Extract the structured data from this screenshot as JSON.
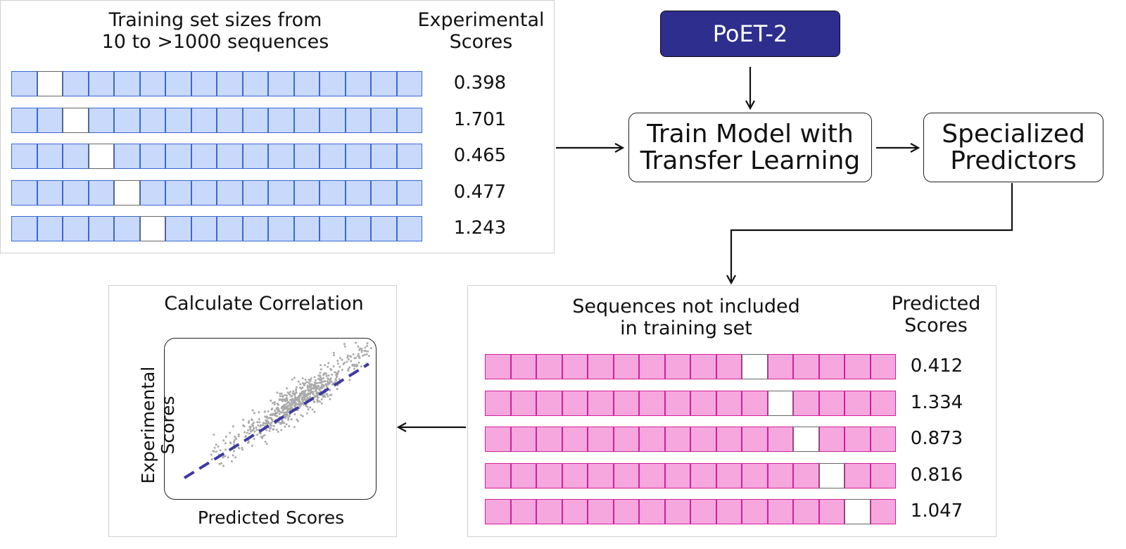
{
  "training_panel": {
    "title": "Training set sizes from\n10 to >1000 sequences",
    "scores_header": "Experimental\nScores",
    "rows": [
      {
        "blank_index": 1,
        "score": "0.398"
      },
      {
        "blank_index": 2,
        "score": "1.701"
      },
      {
        "blank_index": 3,
        "score": "0.465"
      },
      {
        "blank_index": 4,
        "score": "0.477"
      },
      {
        "blank_index": 5,
        "score": "1.243"
      }
    ],
    "cells_per_row": 16,
    "cell_color": "#c9d9fb"
  },
  "poet": {
    "label": "PoET-2",
    "color": "#2e2e8f"
  },
  "train_box": {
    "label": "Train Model with\nTransfer Learning"
  },
  "predictors_box": {
    "label": "Specialized\nPredictors"
  },
  "test_panel": {
    "title": "Sequences not included\nin training set",
    "scores_header": "Predicted\nScores",
    "rows": [
      {
        "blank_index": 10,
        "score": "0.412"
      },
      {
        "blank_index": 11,
        "score": "1.334"
      },
      {
        "blank_index": 12,
        "score": "0.873"
      },
      {
        "blank_index": 13,
        "score": "0.816"
      },
      {
        "blank_index": 14,
        "score": "1.047"
      }
    ],
    "cells_per_row": 16,
    "cell_color": "#f6a8de"
  },
  "correlation_panel": {
    "title": "Calculate Correlation",
    "xlabel": "Predicted Scores",
    "ylabel": "Experimental\nScores",
    "trend_color": "#3f3aa0",
    "point_color": "#aaaaaa"
  }
}
